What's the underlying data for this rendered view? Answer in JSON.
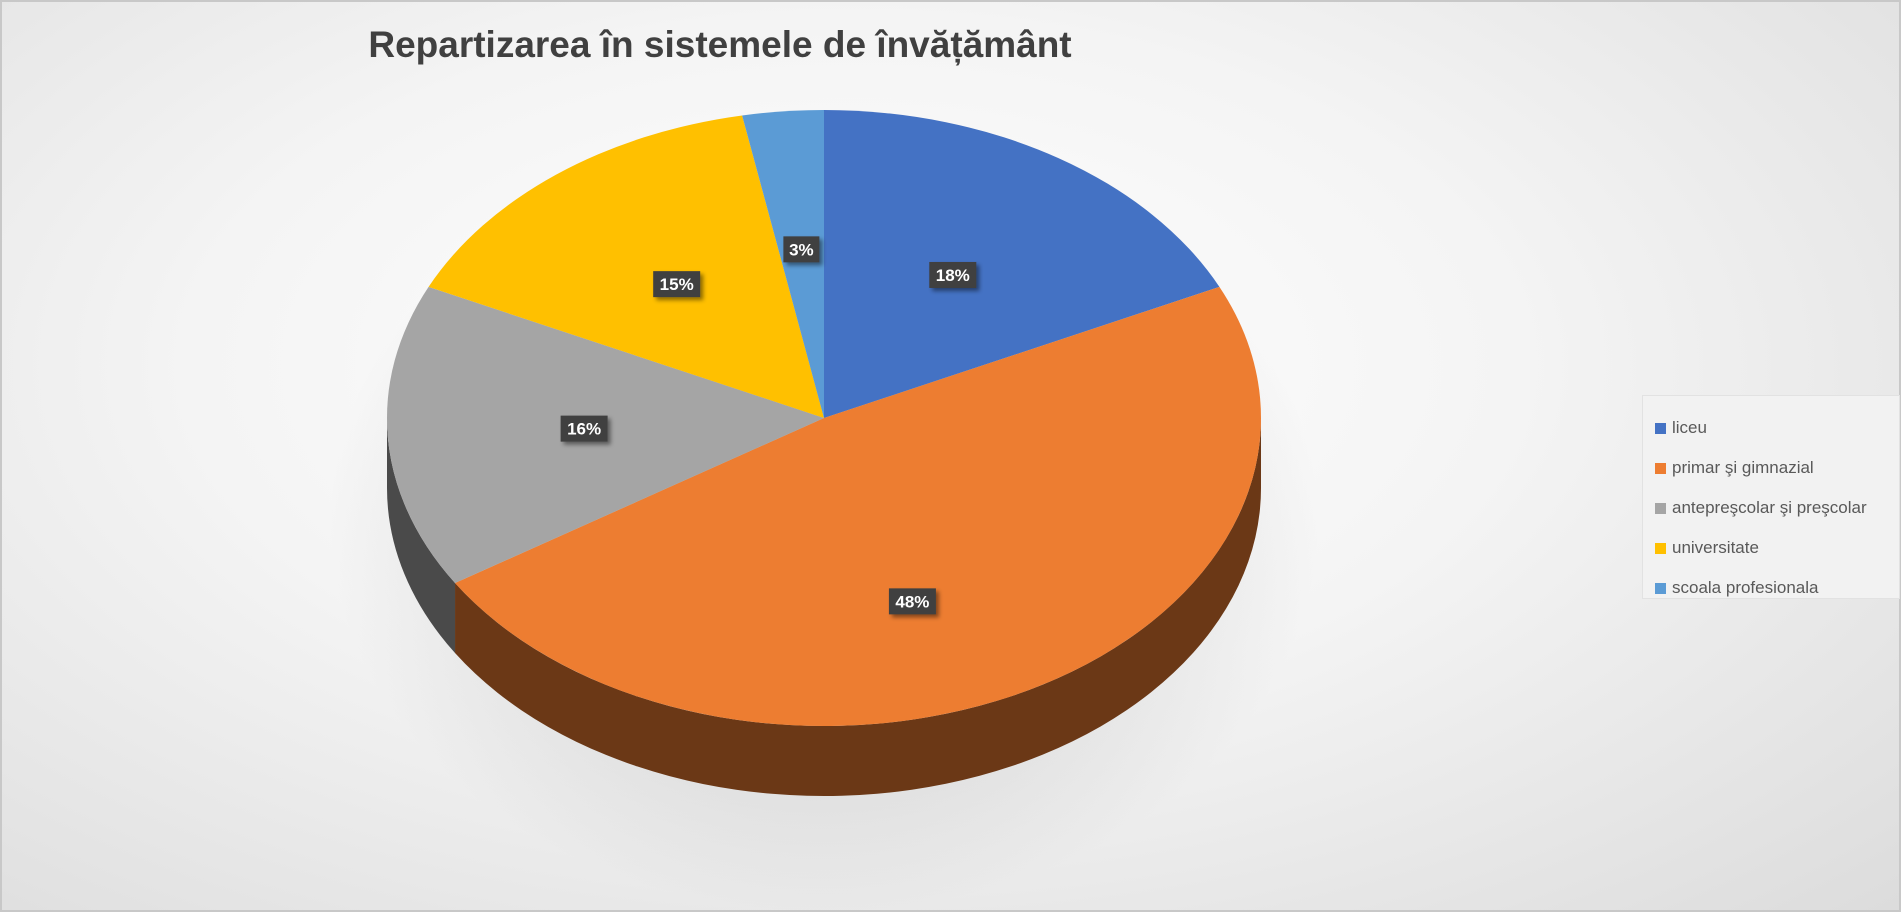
{
  "chart_data": {
    "type": "pie",
    "title": "Repartizarea în sistemele de învățământ",
    "categories": [
      "liceu",
      "primar şi gimnazial",
      "antepreşcolar şi preşcolar",
      "universitate",
      "scoala profesionala"
    ],
    "values": [
      18,
      48,
      16,
      15,
      3
    ],
    "labels": [
      "18%",
      "48%",
      "16%",
      "15%",
      "3%"
    ],
    "colors": [
      "#4472C4",
      "#ED7D31",
      "#A5A5A5",
      "#FFC000",
      "#5B9BD5"
    ],
    "legend_position": "right",
    "style": "3d-pie"
  }
}
